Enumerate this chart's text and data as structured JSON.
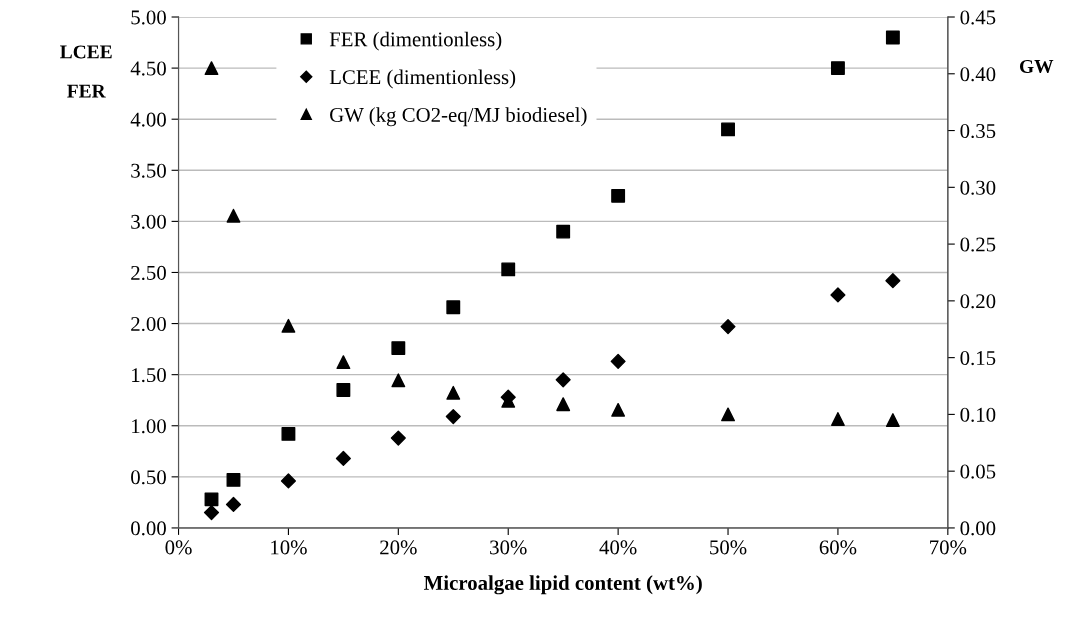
{
  "chart_data": {
    "type": "scatter",
    "xlabel": "Microalgae lipid content (wt%)",
    "ylabel": "LCEE\nFER",
    "y2label": "GW",
    "x": [
      3,
      5,
      10,
      15,
      20,
      25,
      30,
      35,
      40,
      50,
      60,
      65
    ],
    "series": [
      {
        "name": "FER (dimentionless)",
        "color": "#000000",
        "marker": "square",
        "values": [
          0.28,
          0.47,
          0.92,
          1.35,
          1.76,
          2.16,
          2.53,
          2.9,
          3.25,
          3.9,
          4.5,
          4.8
        ]
      },
      {
        "name": "LCEE (dimentionless)",
        "color": "#000000",
        "marker": "diamond",
        "values": [
          0.15,
          0.23,
          0.46,
          0.68,
          0.88,
          1.09,
          1.28,
          1.45,
          1.63,
          1.97,
          2.28,
          2.42
        ]
      },
      {
        "name": "GW (kg CO2-eq/MJ biodiesel)",
        "color": "#000000",
        "marker": "triangle",
        "axis": "y2",
        "values": [
          0.405,
          0.275,
          0.178,
          0.146,
          0.13,
          0.119,
          0.112,
          0.109,
          0.104,
          0.1,
          0.096,
          0.095
        ]
      }
    ],
    "xlim": [
      0,
      70
    ],
    "xticks": [
      {
        "value": 0,
        "label": "0%"
      },
      {
        "value": 10,
        "label": "10%"
      },
      {
        "value": 20,
        "label": "20%"
      },
      {
        "value": 30,
        "label": "30%"
      },
      {
        "value": 40,
        "label": "40%"
      },
      {
        "value": 50,
        "label": "50%"
      },
      {
        "value": 60,
        "label": "60%"
      },
      {
        "value": 70,
        "label": "70%"
      }
    ],
    "ylim": [
      0,
      5
    ],
    "yticks": [
      {
        "value": 0,
        "label": "0.00"
      },
      {
        "value": 0.5,
        "label": "0.50"
      },
      {
        "value": 1,
        "label": "1.00"
      },
      {
        "value": 1.5,
        "label": "1.50"
      },
      {
        "value": 2,
        "label": "2.00"
      },
      {
        "value": 2.5,
        "label": "2.50"
      },
      {
        "value": 3,
        "label": "3.00"
      },
      {
        "value": 3.5,
        "label": "3.50"
      },
      {
        "value": 4,
        "label": "4.00"
      },
      {
        "value": 4.5,
        "label": "4.50"
      },
      {
        "value": 5,
        "label": "5.00"
      }
    ],
    "y2lim": [
      0,
      0.45
    ],
    "y2ticks": [
      {
        "value": 0,
        "label": "0.00"
      },
      {
        "value": 0.05,
        "label": "0.05"
      },
      {
        "value": 0.1,
        "label": "0.10"
      },
      {
        "value": 0.15,
        "label": "0.15"
      },
      {
        "value": 0.2,
        "label": "0.20"
      },
      {
        "value": 0.25,
        "label": "0.25"
      },
      {
        "value": 0.3,
        "label": "0.30"
      },
      {
        "value": 0.35,
        "label": "0.35"
      },
      {
        "value": 0.4,
        "label": "0.40"
      },
      {
        "value": 0.45,
        "label": "0.45"
      }
    ],
    "grid": "y",
    "legend": "top left"
  }
}
